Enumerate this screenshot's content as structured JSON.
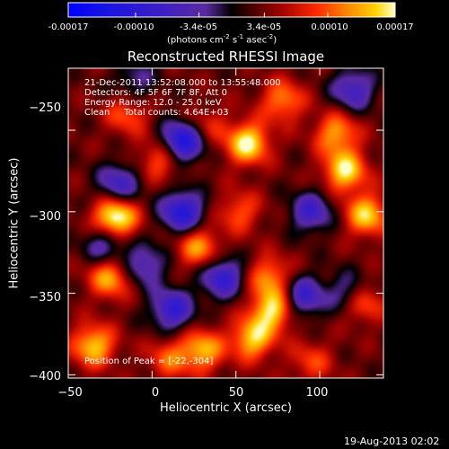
{
  "colorbar": {
    "tick_labels": [
      "-0.00017",
      "-0.00010",
      "-3.4e-05",
      "3.4e-05",
      "0.00010",
      "0.00017"
    ],
    "unit_line1": "(photons cm",
    "unit_exp1": "-2",
    "unit_line2": " s",
    "unit_exp2": "-1",
    "unit_line3": " asec",
    "unit_exp3": "-2",
    "unit_line4": ")",
    "range": [
      -0.00017,
      0.00017
    ]
  },
  "chart_data": {
    "type": "heatmap",
    "title": "Reconstructed RHESSI Image",
    "xlabel": "Heliocentric X (arcsec)",
    "ylabel": "Heliocentric Y (arcsec)",
    "xlim": [
      -50,
      138
    ],
    "ylim": [
      -402,
      -212
    ],
    "x_ticks": [
      -50,
      0,
      50,
      100
    ],
    "y_ticks": [
      -250,
      -300,
      -350,
      -400
    ],
    "x_tick_labels": [
      "−50",
      "0",
      "50",
      "100"
    ],
    "y_tick_labels": [
      "−250",
      "−300",
      "−350",
      "−400"
    ],
    "annotations": [
      "21-Dec-2011 13:52:08.000 to 13:55:48.000",
      "Detectors: 4F 5F 6F 7F 8F, Att 0",
      "Energy Range: 12.0 - 25.0 keV",
      "Clean     Total counts: 4.64E+03"
    ],
    "peak_label": "Position of Peak = [-22,-304]",
    "peak_position": [
      -22,
      -304
    ],
    "sources": [
      {
        "x": -22,
        "y": -304,
        "amplitude": 0.00017
      },
      {
        "x": 57,
        "y": -258,
        "amplitude": 0.00014
      },
      {
        "x": 78,
        "y": -232,
        "amplitude": 9e-05
      },
      {
        "x": 110,
        "y": -252,
        "amplitude": 0.0001
      },
      {
        "x": 115,
        "y": -275,
        "amplitude": 0.00013
      },
      {
        "x": 128,
        "y": -302,
        "amplitude": 0.00012
      },
      {
        "x": 5,
        "y": -268,
        "amplitude": 8e-05
      },
      {
        "x": -15,
        "y": -240,
        "amplitude": 7e-05
      },
      {
        "x": -25,
        "y": -340,
        "amplitude": 0.00011
      },
      {
        "x": 28,
        "y": -322,
        "amplitude": 0.0001
      },
      {
        "x": 52,
        "y": -300,
        "amplitude": 7e-05
      },
      {
        "x": 70,
        "y": -340,
        "amplitude": 9e-05
      },
      {
        "x": 72,
        "y": -360,
        "amplitude": 0.00013
      },
      {
        "x": 60,
        "y": -378,
        "amplitude": 0.00012
      },
      {
        "x": 30,
        "y": -385,
        "amplitude": 0.00011
      },
      {
        "x": 10,
        "y": -390,
        "amplitude": 7e-05
      },
      {
        "x": -35,
        "y": -382,
        "amplitude": 0.00012
      },
      {
        "x": 125,
        "y": -355,
        "amplitude": 0.0001
      },
      {
        "x": 95,
        "y": -392,
        "amplitude": 6e-05
      },
      {
        "x": 32,
        "y": -247,
        "amplitude": 5e-05
      },
      {
        "x": 95,
        "y": -300,
        "amplitude": -0.0001
      },
      {
        "x": 18,
        "y": -257,
        "amplitude": -0.00016
      },
      {
        "x": 18,
        "y": -300,
        "amplitude": -0.00014
      },
      {
        "x": -20,
        "y": -283,
        "amplitude": -0.0001
      },
      {
        "x": -28,
        "y": -320,
        "amplitude": -9e-05
      },
      {
        "x": -5,
        "y": -333,
        "amplitude": -9e-05
      },
      {
        "x": 42,
        "y": -340,
        "amplitude": -0.00012
      },
      {
        "x": 90,
        "y": -352,
        "amplitude": -0.00011
      },
      {
        "x": 118,
        "y": -350,
        "amplitude": -9e-05
      },
      {
        "x": 12,
        "y": -360,
        "amplitude": -0.00012
      },
      {
        "x": -10,
        "y": -220,
        "amplitude": -6e-05
      },
      {
        "x": 120,
        "y": -225,
        "amplitude": -0.0001
      }
    ]
  },
  "timestamp": "19-Aug-2013 02:02"
}
